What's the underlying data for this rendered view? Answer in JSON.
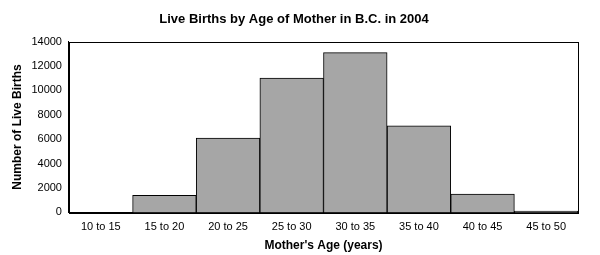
{
  "chart_data": {
    "type": "bar",
    "title": "Live Births by Age of Mother in B.C. in 2004",
    "x_label": "Mother's Age (years)",
    "y_label": "Number of Live Births",
    "categories": [
      "10 to 15",
      "15 to 20",
      "20 to 25",
      "25 to 30",
      "30 to 35",
      "35 to 40",
      "40 to 45",
      "45 to 50"
    ],
    "values": [
      0,
      1400,
      6100,
      11000,
      13100,
      7100,
      1500,
      100
    ],
    "color": "#a6a6a6",
    "ylim": [
      0,
      14000
    ],
    "yticks": [
      0,
      2000,
      4000,
      6000,
      8000,
      10000,
      12000,
      14000
    ],
    "grid": false
  }
}
